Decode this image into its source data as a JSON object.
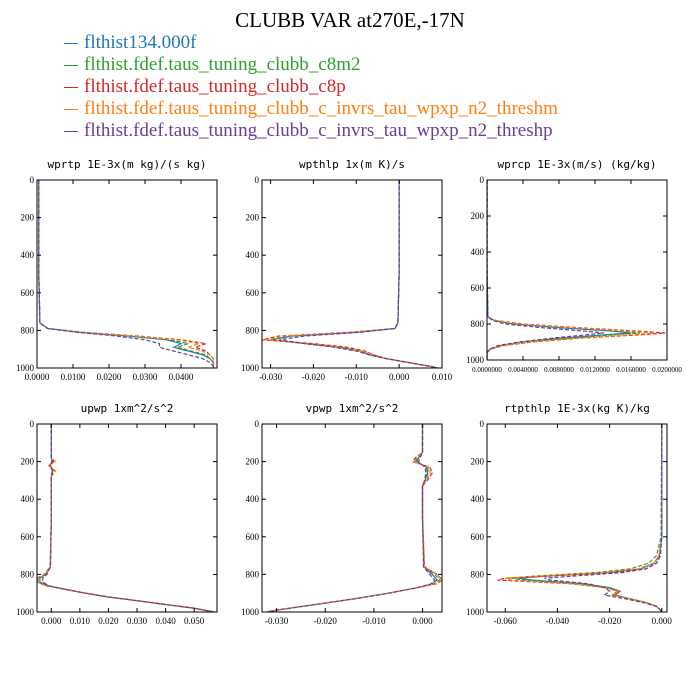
{
  "title": "CLUBB VAR at270E,-17N",
  "series_colors": [
    "#1f77b4",
    "#2ca02c",
    "#d62728",
    "#ff7f0e",
    "#6a3d9a"
  ],
  "series_styles": [
    "solid",
    "dashed",
    "dashed",
    "dashed",
    "dashed"
  ],
  "legend": [
    "flthist134.000f",
    "flthist.fdef.taus_tuning_clubb_c8m2",
    "flthist.fdef.taus_tuning_clubb_c8p",
    "flthist.fdef.taus_tuning_clubb_c_invrs_tau_wpxp_n2_threshm",
    "flthist.fdef.taus_tuning_clubb_c_invrs_tau_wpxp_n2_threshp"
  ],
  "chart_data": [
    {
      "type": "line",
      "title": "wprtp  1E-3x(m kg)/(s kg)",
      "xlim": [
        0,
        0.05
      ],
      "ylim": [
        1000,
        0
      ],
      "xticks": [
        "0.0000",
        "0.0100",
        "0.0200",
        "0.0300",
        "0.0400"
      ],
      "xtick_values": [
        0,
        0.01,
        0.02,
        0.03,
        0.04
      ],
      "yticks": [
        "0",
        "200",
        "400",
        "600",
        "800",
        "1000"
      ],
      "ytick_values": [
        0,
        200,
        400,
        600,
        800,
        1000
      ],
      "y": [
        0,
        500,
        760,
        790,
        810,
        830,
        850,
        870,
        890,
        910,
        930,
        950,
        970,
        990,
        1000
      ],
      "series": [
        {
          "name": "flthist134.000f",
          "x": [
            0.0005,
            0.0005,
            0.0008,
            0.003,
            0.012,
            0.025,
            0.036,
            0.04,
            0.038,
            0.042,
            0.046,
            0.048,
            0.049,
            0.049,
            0.049
          ]
        },
        {
          "name": "flthist.fdef.taus_tuning_clubb_c8m2",
          "x": [
            0.0005,
            0.0005,
            0.0008,
            0.003,
            0.012,
            0.026,
            0.037,
            0.042,
            0.039,
            0.043,
            0.047,
            0.048,
            0.049,
            0.049,
            0.049
          ]
        },
        {
          "name": "flthist.fdef.taus_tuning_clubb_c8p",
          "x": [
            0.0005,
            0.0005,
            0.0008,
            0.003,
            0.013,
            0.028,
            0.04,
            0.047,
            0.044,
            0.047,
            0.048,
            0.049,
            0.049,
            0.049,
            0.049
          ]
        },
        {
          "name": "flthist.fdef.taus_tuning_clubb_c_invrs_tau_wpxp_n2_threshm",
          "x": [
            0.0005,
            0.0005,
            0.0008,
            0.003,
            0.013,
            0.027,
            0.039,
            0.045,
            0.042,
            0.046,
            0.048,
            0.049,
            0.049,
            0.049,
            0.049
          ]
        },
        {
          "name": "flthist.fdef.taus_tuning_clubb_c_invrs_tau_wpxp_n2_threshp",
          "x": [
            0.0005,
            0.0005,
            0.0008,
            0.003,
            0.011,
            0.022,
            0.03,
            0.034,
            0.034,
            0.038,
            0.042,
            0.046,
            0.048,
            0.049,
            0.049
          ]
        }
      ]
    },
    {
      "type": "line",
      "title": "wpthlp  1x(m K)/s",
      "xlim": [
        -0.032,
        0.01
      ],
      "ylim": [
        1000,
        0
      ],
      "xticks": [
        "-0.030",
        "-0.020",
        "-0.010",
        "0.000",
        "0.010"
      ],
      "xtick_values": [
        -0.03,
        -0.02,
        -0.01,
        0,
        0.01
      ],
      "yticks": [
        "0",
        "200",
        "400",
        "600",
        "800",
        "1000"
      ],
      "ytick_values": [
        0,
        200,
        400,
        600,
        800,
        1000
      ],
      "y": [
        0,
        500,
        760,
        790,
        810,
        830,
        850,
        870,
        890,
        910,
        930,
        950,
        970,
        990,
        1000
      ],
      "series": [
        {
          "name": "flthist134.000f",
          "x": [
            0.0,
            0.0,
            -0.0003,
            -0.001,
            -0.01,
            -0.025,
            -0.03,
            -0.022,
            -0.014,
            -0.009,
            -0.007,
            -0.003,
            0.002,
            0.007,
            0.009
          ]
        },
        {
          "name": "flthist.fdef.taus_tuning_clubb_c8m2",
          "x": [
            0.0,
            0.0,
            -0.0003,
            -0.001,
            -0.011,
            -0.026,
            -0.03,
            -0.021,
            -0.013,
            -0.009,
            -0.007,
            -0.003,
            0.002,
            0.007,
            0.009
          ]
        },
        {
          "name": "flthist.fdef.taus_tuning_clubb_c8p",
          "x": [
            0.0,
            0.0,
            -0.0003,
            -0.001,
            -0.012,
            -0.028,
            -0.032,
            -0.02,
            -0.012,
            -0.008,
            -0.006,
            -0.003,
            0.002,
            0.007,
            0.009
          ]
        },
        {
          "name": "flthist.fdef.taus_tuning_clubb_c_invrs_tau_wpxp_n2_threshm",
          "x": [
            0.0,
            0.0,
            -0.0003,
            -0.001,
            -0.012,
            -0.027,
            -0.031,
            -0.021,
            -0.013,
            -0.009,
            -0.006,
            -0.003,
            0.002,
            0.007,
            0.009
          ]
        },
        {
          "name": "flthist.fdef.taus_tuning_clubb_c_invrs_tau_wpxp_n2_threshp",
          "x": [
            0.0,
            0.0,
            -0.0003,
            -0.001,
            -0.009,
            -0.022,
            -0.028,
            -0.022,
            -0.015,
            -0.01,
            -0.007,
            -0.003,
            0.002,
            0.007,
            0.009
          ]
        }
      ]
    },
    {
      "type": "line",
      "title": "wprcp  1E-3x(m/s) (kg/kg)",
      "xlim": [
        0,
        0.02
      ],
      "ylim": [
        1000,
        0
      ],
      "xticks": [
        "0.0000000",
        "0.0040000",
        "0.0080000",
        "0.0120000",
        "0.0160000",
        "0.0200000"
      ],
      "xtick_values": [
        0,
        0.004,
        0.008,
        0.012,
        0.016,
        0.02
      ],
      "yticks": [
        "0",
        "200",
        "400",
        "600",
        "800",
        "1000"
      ],
      "ytick_values": [
        0,
        200,
        400,
        600,
        800,
        1000
      ],
      "y": [
        0,
        500,
        760,
        780,
        800,
        820,
        840,
        850,
        860,
        880,
        900,
        920,
        940,
        960,
        1000
      ],
      "series": [
        {
          "name": "flthist134.000f",
          "x": [
            0,
            0,
            0.0001,
            0.0008,
            0.003,
            0.008,
            0.014,
            0.016,
            0.013,
            0.008,
            0.004,
            0.0015,
            0.0003,
            0,
            0
          ]
        },
        {
          "name": "flthist.fdef.taus_tuning_clubb_c8m2",
          "x": [
            0,
            0,
            0.0001,
            0.0008,
            0.003,
            0.009,
            0.015,
            0.017,
            0.014,
            0.009,
            0.004,
            0.0015,
            0.0003,
            0,
            0
          ]
        },
        {
          "name": "flthist.fdef.taus_tuning_clubb_c8p",
          "x": [
            0,
            0,
            0.0001,
            0.0009,
            0.004,
            0.01,
            0.017,
            0.0198,
            0.017,
            0.01,
            0.005,
            0.0018,
            0.0004,
            0,
            0
          ]
        },
        {
          "name": "flthist.fdef.taus_tuning_clubb_c_invrs_tau_wpxp_n2_threshm",
          "x": [
            0,
            0,
            0.0001,
            0.0009,
            0.0035,
            0.0095,
            0.016,
            0.0185,
            0.016,
            0.0095,
            0.0045,
            0.0016,
            0.0004,
            0,
            0
          ]
        },
        {
          "name": "flthist.fdef.taus_tuning_clubb_c_invrs_tau_wpxp_n2_threshp",
          "x": [
            0,
            0,
            0.0001,
            0.0006,
            0.002,
            0.006,
            0.011,
            0.013,
            0.011,
            0.007,
            0.0035,
            0.0012,
            0.0003,
            0,
            0
          ]
        }
      ]
    },
    {
      "type": "line",
      "title": "upwp  1xm^2/s^2",
      "xlim": [
        -0.005,
        0.058
      ],
      "ylim": [
        1000,
        0
      ],
      "xticks": [
        "0.000",
        "0.010",
        "0.020",
        "0.030",
        "0.040",
        "0.050"
      ],
      "xtick_values": [
        0,
        0.01,
        0.02,
        0.03,
        0.04,
        0.05
      ],
      "yticks": [
        "0",
        "200",
        "400",
        "600",
        "800",
        "1000"
      ],
      "ytick_values": [
        0,
        200,
        400,
        600,
        800,
        1000
      ],
      "y": [
        0,
        180,
        200,
        220,
        250,
        280,
        300,
        500,
        760,
        800,
        820,
        840,
        860,
        880,
        900,
        920,
        940,
        960,
        980,
        1000
      ],
      "series": [
        {
          "name": "flthist134.000f",
          "x": [
            0,
            0,
            0.0003,
            -0.0003,
            0.0004,
            0,
            0,
            0,
            -0.0003,
            -0.002,
            -0.004,
            -0.004,
            -0.001,
            0.005,
            0.012,
            0.02,
            0.03,
            0.04,
            0.05,
            0.057
          ]
        },
        {
          "name": "flthist.fdef.taus_tuning_clubb_c8m2",
          "x": [
            0,
            0,
            0.0004,
            -0.0004,
            0.0005,
            0,
            0,
            0,
            -0.0003,
            -0.002,
            -0.004,
            -0.005,
            -0.0015,
            0.005,
            0.012,
            0.02,
            0.03,
            0.04,
            0.05,
            0.057
          ]
        },
        {
          "name": "flthist.fdef.taus_tuning_clubb_c8p",
          "x": [
            0,
            0,
            0.0008,
            -0.0008,
            0.001,
            0,
            0,
            0,
            -0.0004,
            -0.0025,
            -0.005,
            -0.005,
            -0.002,
            0.005,
            0.012,
            0.02,
            0.03,
            0.04,
            0.05,
            0.057
          ]
        },
        {
          "name": "flthist.fdef.taus_tuning_clubb_c_invrs_tau_wpxp_n2_threshm",
          "x": [
            0,
            0,
            0.0015,
            -0.001,
            0.0015,
            0,
            0,
            0,
            -0.0004,
            -0.0025,
            -0.0045,
            -0.005,
            -0.002,
            0.005,
            0.012,
            0.02,
            0.03,
            0.04,
            0.05,
            0.057
          ]
        },
        {
          "name": "flthist.fdef.taus_tuning_clubb_c_invrs_tau_wpxp_n2_threshp",
          "x": [
            0,
            0,
            0.0002,
            -0.0002,
            0.0003,
            0,
            0,
            0,
            -0.0003,
            -0.0015,
            -0.003,
            -0.003,
            -0.001,
            0.005,
            0.012,
            0.02,
            0.03,
            0.04,
            0.05,
            0.057
          ]
        }
      ]
    },
    {
      "type": "line",
      "title": "vpwp  1xm^2/s^2",
      "xlim": [
        -0.033,
        0.004
      ],
      "ylim": [
        1000,
        0
      ],
      "xticks": [
        "-0.030",
        "-0.020",
        "-0.010",
        "0.000"
      ],
      "xtick_values": [
        -0.03,
        -0.02,
        -0.01,
        0
      ],
      "yticks": [
        "0",
        "200",
        "400",
        "600",
        "800",
        "1000"
      ],
      "ytick_values": [
        0,
        200,
        400,
        600,
        800,
        1000
      ],
      "y": [
        0,
        150,
        180,
        200,
        230,
        260,
        300,
        330,
        500,
        760,
        800,
        830,
        850,
        870,
        900,
        930,
        960,
        990,
        1000
      ],
      "series": [
        {
          "name": "flthist134.000f",
          "x": [
            0,
            0,
            -0.0008,
            -0.0012,
            0.0008,
            0.001,
            0.0005,
            0,
            0,
            0.0003,
            0.002,
            0.003,
            0.002,
            -0.001,
            -0.007,
            -0.014,
            -0.022,
            -0.03,
            -0.032
          ]
        },
        {
          "name": "flthist.fdef.taus_tuning_clubb_c8m2",
          "x": [
            0,
            0,
            -0.001,
            -0.0015,
            0.001,
            0.0012,
            0.0006,
            0,
            0,
            0.0003,
            0.0025,
            0.0035,
            0.0025,
            -0.001,
            -0.007,
            -0.014,
            -0.022,
            -0.03,
            -0.032
          ]
        },
        {
          "name": "flthist.fdef.taus_tuning_clubb_c8p",
          "x": [
            0,
            0,
            -0.0015,
            -0.002,
            0.0015,
            0.002,
            0.001,
            0,
            0,
            0.0004,
            0.003,
            0.004,
            0.003,
            -0.001,
            -0.007,
            -0.014,
            -0.022,
            -0.03,
            -0.032
          ]
        },
        {
          "name": "flthist.fdef.taus_tuning_clubb_c_invrs_tau_wpxp_n2_threshm",
          "x": [
            0,
            0,
            -0.0012,
            -0.0018,
            0.0012,
            0.0016,
            0.0008,
            0,
            0,
            0.0004,
            0.003,
            0.0038,
            0.0028,
            -0.001,
            -0.007,
            -0.014,
            -0.022,
            -0.03,
            -0.032
          ]
        },
        {
          "name": "flthist.fdef.taus_tuning_clubb_c_invrs_tau_wpxp_n2_threshp",
          "x": [
            0,
            0,
            -0.0005,
            -0.0008,
            0.0005,
            0.0007,
            0.0004,
            0,
            0,
            0.0002,
            0.0015,
            0.0025,
            0.0018,
            -0.001,
            -0.007,
            -0.014,
            -0.022,
            -0.03,
            -0.032
          ]
        }
      ]
    },
    {
      "type": "line",
      "title": "rtpthlp  1E-3x(kg K)/kg",
      "xlim": [
        -0.067,
        0.002
      ],
      "ylim": [
        1000,
        0
      ],
      "xticks": [
        "-0.060",
        "-0.040",
        "-0.020",
        "0.000"
      ],
      "xtick_values": [
        -0.06,
        -0.04,
        -0.02,
        0
      ],
      "yticks": [
        "0",
        "200",
        "400",
        "600",
        "800",
        "1000"
      ],
      "ytick_values": [
        0,
        200,
        400,
        600,
        800,
        1000
      ],
      "y": [
        0,
        600,
        700,
        740,
        770,
        790,
        810,
        820,
        830,
        850,
        870,
        890,
        910,
        930,
        950,
        970,
        990,
        1000
      ],
      "series": [
        {
          "name": "flthist134.000f",
          "x": [
            0,
            0,
            -0.001,
            -0.003,
            -0.008,
            -0.02,
            -0.045,
            -0.055,
            -0.05,
            -0.03,
            -0.02,
            -0.016,
            -0.018,
            -0.012,
            -0.006,
            -0.002,
            -0.0005,
            0
          ]
        },
        {
          "name": "flthist.fdef.taus_tuning_clubb_c8m2",
          "x": [
            0,
            -0.0003,
            -0.002,
            -0.005,
            -0.012,
            -0.025,
            -0.05,
            -0.058,
            -0.053,
            -0.032,
            -0.021,
            -0.017,
            -0.019,
            -0.012,
            -0.006,
            -0.002,
            -0.0005,
            0
          ]
        },
        {
          "name": "flthist.fdef.taus_tuning_clubb_c8p",
          "x": [
            0,
            0,
            -0.001,
            -0.002,
            -0.006,
            -0.018,
            -0.045,
            -0.06,
            -0.063,
            -0.035,
            -0.022,
            -0.016,
            -0.018,
            -0.012,
            -0.006,
            -0.002,
            -0.0005,
            0
          ]
        },
        {
          "name": "flthist.fdef.taus_tuning_clubb_c_invrs_tau_wpxp_n2_threshm",
          "x": [
            0,
            0,
            -0.001,
            -0.003,
            -0.009,
            -0.022,
            -0.048,
            -0.06,
            -0.058,
            -0.034,
            -0.022,
            -0.017,
            -0.019,
            -0.012,
            -0.006,
            -0.002,
            -0.0005,
            0
          ]
        },
        {
          "name": "flthist.fdef.taus_tuning_clubb_c_invrs_tau_wpxp_n2_threshp",
          "x": [
            0,
            0,
            -0.0005,
            -0.002,
            -0.006,
            -0.015,
            -0.035,
            -0.045,
            -0.043,
            -0.028,
            -0.022,
            -0.02,
            -0.022,
            -0.014,
            -0.007,
            -0.002,
            -0.0005,
            0
          ]
        }
      ]
    }
  ]
}
